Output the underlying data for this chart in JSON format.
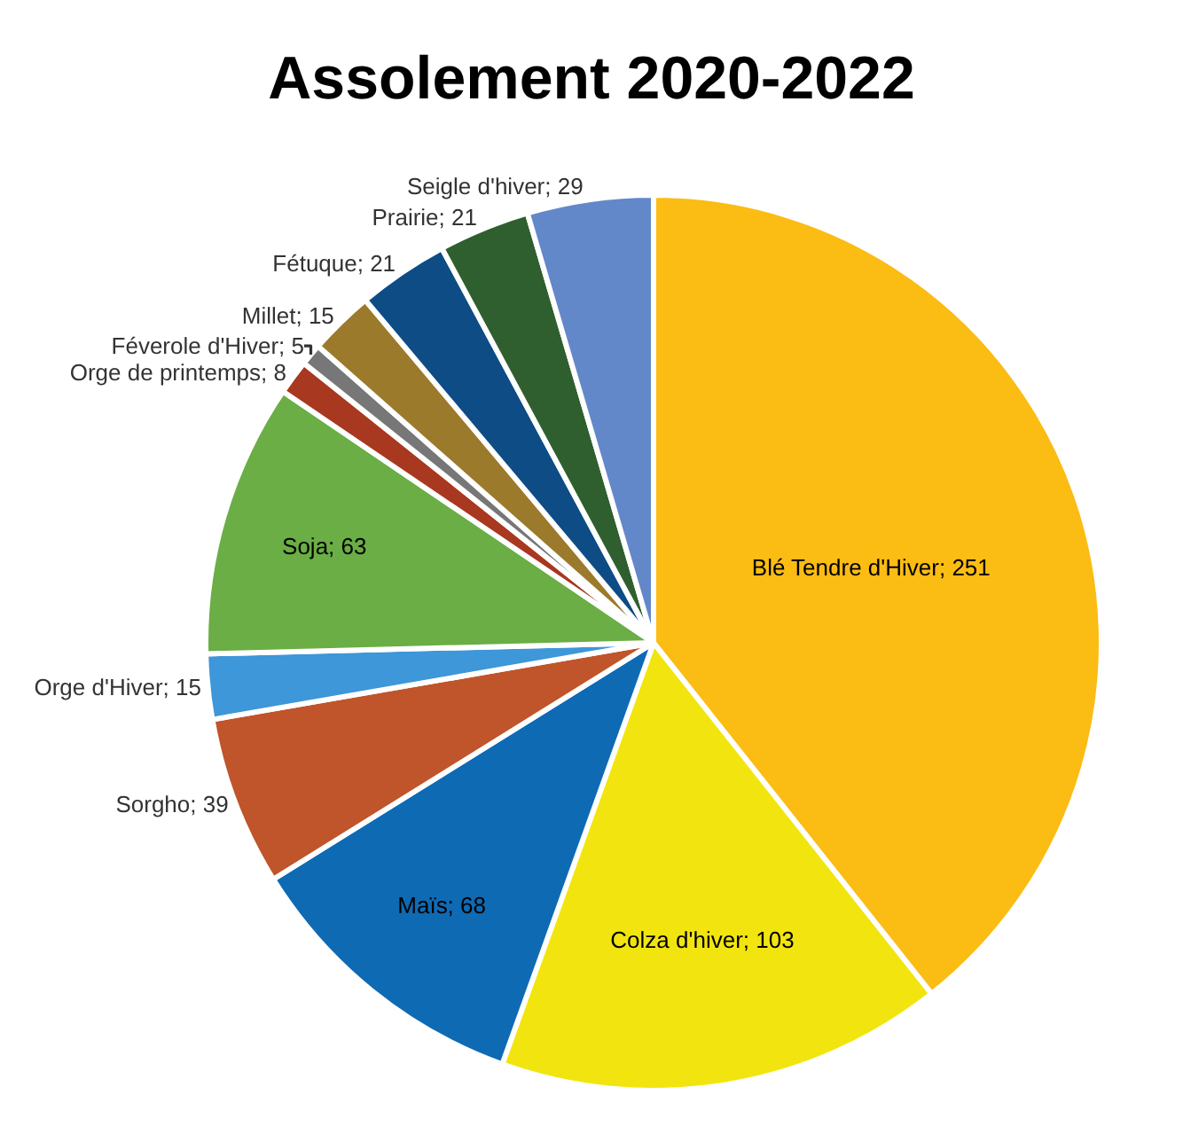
{
  "chart_data": {
    "type": "pie",
    "title": "Assolement 2020-2022",
    "categories": [
      "Blé Tendre d'Hiver",
      "Colza d'hiver",
      "Maïs",
      "Sorgho",
      "Orge d'Hiver",
      "Soja",
      "Orge de printemps",
      "Féverole d'Hiver",
      "Millet",
      "Fétuque",
      "Prairie",
      "Seigle d'hiver"
    ],
    "values": [
      251,
      103,
      68,
      39,
      15,
      63,
      8,
      5,
      15,
      21,
      21,
      29
    ],
    "value_labels": [
      "; 251",
      "; 103",
      "; 68",
      "; 39",
      "; 15",
      "; 63",
      "; 8",
      "; 5",
      "; 15",
      "; 21",
      "; 21",
      "; 29"
    ],
    "colors": [
      "#fbbc13",
      "#f2e50f",
      "#0f6ab4",
      "#c0542a",
      "#3d97d8",
      "#6aae45",
      "#a8381f",
      "#777777",
      "#9c7a2c",
      "#0e4c86",
      "#2f5f2f",
      "#6388c9"
    ],
    "legend": false
  }
}
